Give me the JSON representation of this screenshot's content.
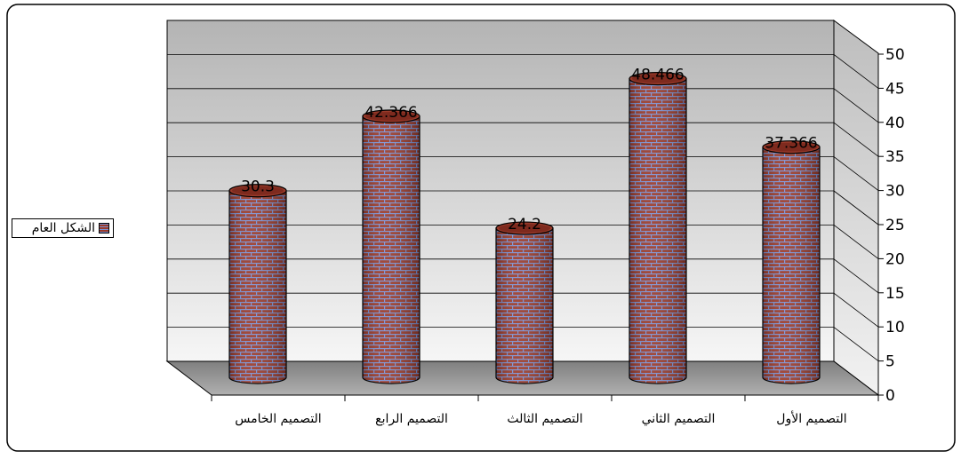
{
  "chart_data": {
    "type": "bar",
    "categories": [
      "التصميم الخامس",
      "التصميم الرابع",
      "التصميم الثالث",
      "التصميم الثاني",
      "التصميم الأول"
    ],
    "series": [
      {
        "name": "الشكل العام",
        "values": [
          30.3,
          42.366,
          24.2,
          48.466,
          37.366
        ]
      }
    ],
    "data_labels": [
      "30.3",
      "42.366",
      "24.2",
      "48.466",
      "37.366"
    ],
    "ylim": [
      0,
      50
    ],
    "yticks": [
      0,
      5,
      10,
      15,
      20,
      25,
      30,
      35,
      40,
      45,
      50
    ],
    "y_axis_side": "right",
    "legend_position": "left",
    "grid": true,
    "style": "3d-cylinder",
    "colors": {
      "bar": "#9a3a2a",
      "mortar": "#7b8fd0",
      "wall_top": "#b4b4b4",
      "wall_bottom": "#f4f4f4",
      "floor": "#8c8c8c"
    }
  }
}
